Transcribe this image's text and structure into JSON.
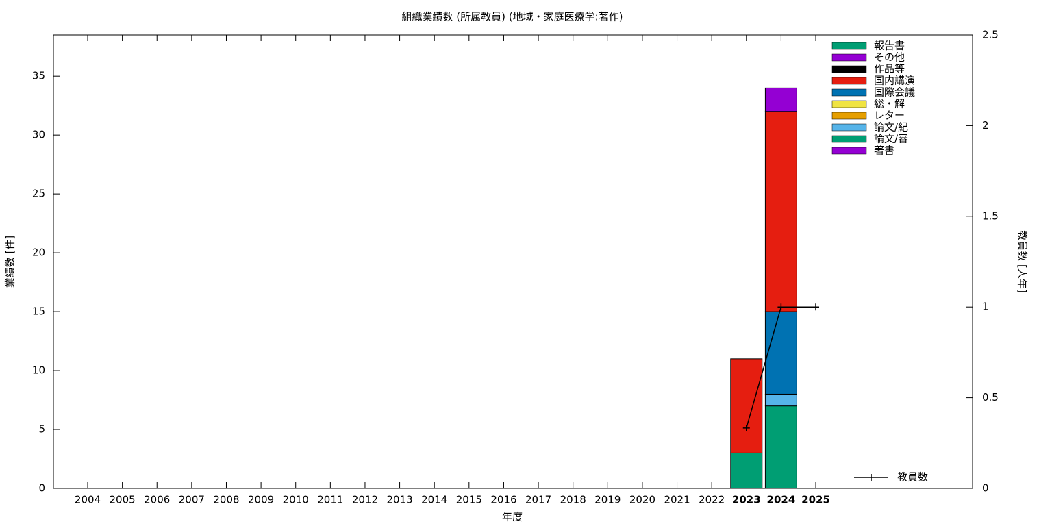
{
  "chart_data": {
    "type": "bar",
    "stacked": true,
    "title": "組織業績数 (所属教員) (地域・家庭医療学:著作)",
    "xlabel": "年度",
    "ylabel": "業績数 [件]",
    "y2label": "教員数 [人年]",
    "categories": [
      "2004",
      "2005",
      "2006",
      "2007",
      "2008",
      "2009",
      "2010",
      "2011",
      "2012",
      "2013",
      "2014",
      "2015",
      "2016",
      "2017",
      "2018",
      "2019",
      "2020",
      "2021",
      "2022",
      "2023",
      "2024",
      "2025"
    ],
    "series": [
      {
        "name": "報告書",
        "color": "#009e73",
        "values": [
          null,
          null,
          null,
          null,
          null,
          null,
          null,
          null,
          null,
          null,
          null,
          null,
          null,
          null,
          null,
          null,
          null,
          null,
          null,
          null,
          null,
          null
        ]
      },
      {
        "name": "その他",
        "color": "#9400d3",
        "values": [
          null,
          null,
          null,
          null,
          null,
          null,
          null,
          null,
          null,
          null,
          null,
          null,
          null,
          null,
          null,
          null,
          null,
          null,
          null,
          null,
          2,
          null
        ]
      },
      {
        "name": "作品等",
        "color": "#000000",
        "values": [
          null,
          null,
          null,
          null,
          null,
          null,
          null,
          null,
          null,
          null,
          null,
          null,
          null,
          null,
          null,
          null,
          null,
          null,
          null,
          null,
          null,
          null
        ]
      },
      {
        "name": "国内講演",
        "color": "#e51e10",
        "values": [
          null,
          null,
          null,
          null,
          null,
          null,
          null,
          null,
          null,
          null,
          null,
          null,
          null,
          null,
          null,
          null,
          null,
          null,
          null,
          8,
          17,
          null
        ]
      },
      {
        "name": "国際会議",
        "color": "#0072b2",
        "values": [
          null,
          null,
          null,
          null,
          null,
          null,
          null,
          null,
          null,
          null,
          null,
          null,
          null,
          null,
          null,
          null,
          null,
          null,
          null,
          null,
          7,
          null
        ]
      },
      {
        "name": "総・解",
        "color": "#f0e442",
        "values": [
          null,
          null,
          null,
          null,
          null,
          null,
          null,
          null,
          null,
          null,
          null,
          null,
          null,
          null,
          null,
          null,
          null,
          null,
          null,
          null,
          null,
          null
        ]
      },
      {
        "name": "レター",
        "color": "#e69f00",
        "values": [
          null,
          null,
          null,
          null,
          null,
          null,
          null,
          null,
          null,
          null,
          null,
          null,
          null,
          null,
          null,
          null,
          null,
          null,
          null,
          null,
          null,
          null
        ]
      },
      {
        "name": "論文/紀",
        "color": "#56b4e9",
        "values": [
          null,
          null,
          null,
          null,
          null,
          null,
          null,
          null,
          null,
          null,
          null,
          null,
          null,
          null,
          null,
          null,
          null,
          null,
          null,
          null,
          1,
          null
        ]
      },
      {
        "name": "論文/審",
        "color": "#009e73",
        "values": [
          null,
          null,
          null,
          null,
          null,
          null,
          null,
          null,
          null,
          null,
          null,
          null,
          null,
          null,
          null,
          null,
          null,
          null,
          null,
          3,
          7,
          null
        ]
      },
      {
        "name": "著書",
        "color": "#9400d3",
        "values": [
          null,
          null,
          null,
          null,
          null,
          null,
          null,
          null,
          null,
          null,
          null,
          null,
          null,
          null,
          null,
          null,
          null,
          null,
          null,
          null,
          null,
          null
        ]
      },
      {
        "name": "教員数",
        "color": "#000000",
        "type": "line",
        "axis": "y2",
        "values": [
          null,
          null,
          null,
          null,
          null,
          null,
          null,
          null,
          null,
          null,
          null,
          null,
          null,
          null,
          null,
          null,
          null,
          null,
          null,
          0.333,
          1,
          1
        ]
      }
    ],
    "ylim": [
      0,
      38.5
    ],
    "yticks": [
      0,
      5,
      10,
      15,
      20,
      25,
      30,
      35
    ],
    "y2lim": [
      0,
      2.5
    ],
    "y2ticks": [
      0,
      0.5,
      1,
      1.5,
      2,
      2.5
    ],
    "grid": false,
    "legend": "upper right"
  }
}
